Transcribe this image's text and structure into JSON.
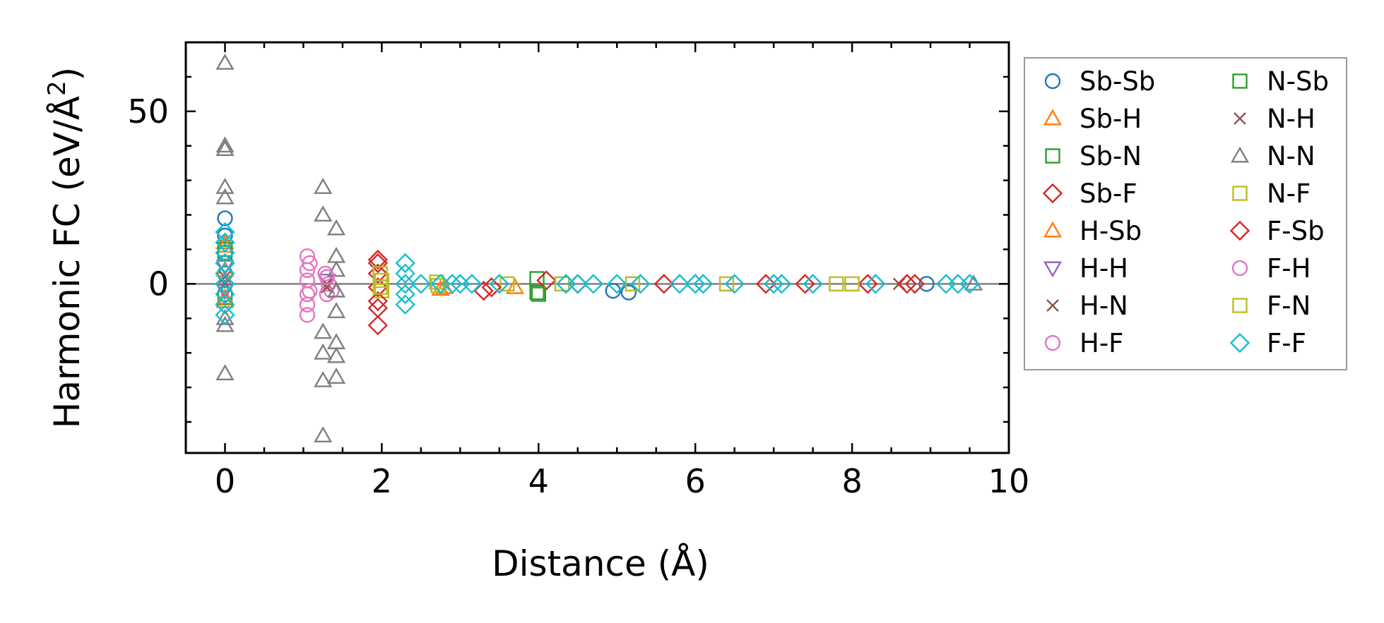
{
  "chart_data": {
    "type": "scatter",
    "xlabel": "Distance (Å)",
    "ylabel_main": "Harmonic FC (eV/Å",
    "ylabel_sup": "2",
    "ylabel_close": ")",
    "xlim": [
      -0.5,
      10
    ],
    "ylim": [
      -49,
      70
    ],
    "x_ticks": [
      0,
      2,
      4,
      6,
      8,
      10
    ],
    "x_tick_labels": [
      "0",
      "2",
      "4",
      "6",
      "8",
      "10"
    ],
    "x_minor_step": 0.5,
    "y_ticks": [
      0,
      50
    ],
    "y_tick_labels": [
      "0",
      "50"
    ],
    "y_minor_step": 10,
    "zero_line": true,
    "legend_position": "outside-right",
    "series": [
      {
        "name": "Sb-Sb",
        "marker": "circle",
        "color": "#1f77b4",
        "points": [
          [
            0,
            19
          ],
          [
            0,
            14
          ],
          [
            0,
            9
          ],
          [
            0,
            3
          ],
          [
            0,
            -3
          ],
          [
            4.95,
            -2
          ],
          [
            5.15,
            -2.5
          ],
          [
            8.95,
            0
          ]
        ]
      },
      {
        "name": "Sb-H",
        "marker": "triangle-up",
        "color": "#ff7f0e",
        "points": [
          [
            0,
            12
          ],
          [
            0,
            4
          ],
          [
            0,
            -5
          ],
          [
            2.75,
            -1.5
          ],
          [
            3.7,
            -1
          ]
        ]
      },
      {
        "name": "Sb-N",
        "marker": "square",
        "color": "#2ca02c",
        "points": [
          [
            0,
            10
          ],
          [
            0,
            -4
          ],
          [
            3.98,
            1.5
          ],
          [
            3.98,
            -2.5
          ]
        ]
      },
      {
        "name": "Sb-F",
        "marker": "diamond",
        "color": "#d62728",
        "points": [
          [
            1.95,
            7
          ],
          [
            1.95,
            3
          ],
          [
            1.95,
            -1
          ],
          [
            1.95,
            -7
          ],
          [
            1.95,
            -12
          ],
          [
            3.3,
            -2
          ],
          [
            4.1,
            1
          ],
          [
            5.6,
            0
          ],
          [
            7.4,
            0
          ],
          [
            8.2,
            0
          ],
          [
            8.8,
            0
          ]
        ]
      },
      {
        "name": "H-Sb",
        "marker": "triangle-up",
        "color": "#ff7f0e",
        "points": [
          [
            0,
            11
          ],
          [
            0,
            -4
          ],
          [
            2.8,
            -1
          ]
        ]
      },
      {
        "name": "H-H",
        "marker": "triangle-down",
        "color": "#9467bd",
        "points": [
          [
            0,
            5
          ],
          [
            0,
            -2
          ],
          [
            1.3,
            1
          ]
        ]
      },
      {
        "name": "H-N",
        "marker": "x",
        "color": "#8c564b",
        "points": [
          [
            0,
            2
          ],
          [
            1.3,
            0
          ],
          [
            8.6,
            0
          ]
        ]
      },
      {
        "name": "H-F",
        "marker": "circle",
        "color": "#e377c2",
        "points": [
          [
            1.05,
            8
          ],
          [
            1.05,
            4
          ],
          [
            1.05,
            1
          ],
          [
            1.05,
            -3
          ],
          [
            1.05,
            -6
          ],
          [
            1.05,
            -9
          ],
          [
            1.28,
            3
          ],
          [
            1.32,
            0
          ],
          [
            1.36,
            -2
          ],
          [
            1.3,
            -3
          ]
        ]
      },
      {
        "name": "N-Sb",
        "marker": "square",
        "color": "#2ca02c",
        "points": [
          [
            0,
            9
          ],
          [
            4.0,
            -3
          ]
        ]
      },
      {
        "name": "N-H",
        "marker": "x",
        "color": "#8c564b",
        "points": [
          [
            0,
            0
          ],
          [
            1.3,
            -1
          ]
        ]
      },
      {
        "name": "N-N",
        "marker": "triangle-up",
        "color": "#7f7f7f",
        "points": [
          [
            0,
            64
          ],
          [
            0,
            40
          ],
          [
            0,
            39
          ],
          [
            0,
            28
          ],
          [
            0,
            25
          ],
          [
            0,
            -10
          ],
          [
            0,
            -12
          ],
          [
            0,
            -26
          ],
          [
            1.25,
            28
          ],
          [
            1.25,
            20
          ],
          [
            1.25,
            -14
          ],
          [
            1.25,
            -20
          ],
          [
            1.25,
            -28
          ],
          [
            1.25,
            -44
          ],
          [
            1.42,
            16
          ],
          [
            1.42,
            8
          ],
          [
            1.42,
            4
          ],
          [
            1.42,
            -2
          ],
          [
            1.42,
            -8
          ],
          [
            1.42,
            -17
          ],
          [
            1.42,
            -21
          ],
          [
            1.42,
            -27
          ],
          [
            9.55,
            0
          ]
        ]
      },
      {
        "name": "N-F",
        "marker": "square",
        "color": "#bcbd22",
        "points": [
          [
            2.0,
            1
          ],
          [
            2.0,
            -2
          ],
          [
            2.72,
            -0.5
          ],
          [
            3.6,
            0
          ],
          [
            4.3,
            0
          ],
          [
            5.2,
            0
          ],
          [
            6.4,
            0
          ],
          [
            7.8,
            0
          ],
          [
            8.0,
            0
          ]
        ]
      },
      {
        "name": "F-Sb",
        "marker": "diamond",
        "color": "#d62728",
        "points": [
          [
            1.95,
            6
          ],
          [
            1.95,
            -5
          ],
          [
            3.4,
            -1
          ],
          [
            4.5,
            0
          ],
          [
            6.9,
            0
          ],
          [
            8.7,
            0
          ]
        ]
      },
      {
        "name": "F-H",
        "marker": "circle",
        "color": "#e377c2",
        "points": [
          [
            1.08,
            6
          ],
          [
            1.08,
            -2
          ],
          [
            1.3,
            2
          ]
        ]
      },
      {
        "name": "F-N",
        "marker": "square",
        "color": "#bcbd22",
        "points": [
          [
            1.98,
            3
          ],
          [
            1.98,
            -1
          ],
          [
            2.7,
            0.5
          ]
        ]
      },
      {
        "name": "F-F",
        "marker": "diamond",
        "color": "#17becf",
        "points": [
          [
            0,
            15
          ],
          [
            0,
            12
          ],
          [
            0,
            9
          ],
          [
            0,
            6
          ],
          [
            0,
            3
          ],
          [
            0,
            0
          ],
          [
            0,
            -3
          ],
          [
            0,
            -6
          ],
          [
            0,
            -9
          ],
          [
            2.3,
            6
          ],
          [
            2.3,
            3
          ],
          [
            2.3,
            0
          ],
          [
            2.3,
            -3
          ],
          [
            2.3,
            -6
          ],
          [
            2.5,
            0
          ],
          [
            2.75,
            0
          ],
          [
            2.9,
            0
          ],
          [
            3.0,
            0
          ],
          [
            3.15,
            0
          ],
          [
            3.5,
            0
          ],
          [
            4.35,
            0
          ],
          [
            4.5,
            0
          ],
          [
            4.7,
            0
          ],
          [
            5.0,
            0
          ],
          [
            5.3,
            0
          ],
          [
            5.8,
            0
          ],
          [
            6.0,
            0
          ],
          [
            6.1,
            0
          ],
          [
            6.5,
            0
          ],
          [
            7.0,
            0
          ],
          [
            7.1,
            0
          ],
          [
            7.5,
            0
          ],
          [
            8.3,
            0
          ],
          [
            9.2,
            0
          ],
          [
            9.35,
            0
          ],
          [
            9.5,
            0
          ]
        ]
      }
    ]
  }
}
